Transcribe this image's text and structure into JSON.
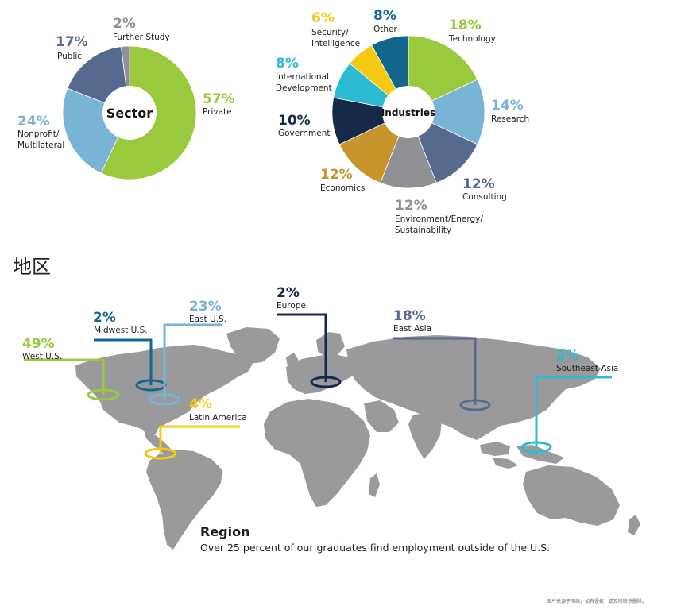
{
  "chart_data": [
    {
      "type": "pie",
      "center_label": "Sector",
      "categories": [
        "Private",
        "Nonprofit/ Multilateral",
        "Public",
        "Further Study"
      ],
      "values": [
        57,
        24,
        17,
        2
      ],
      "value_labels": [
        "57%",
        "24%",
        "17%",
        "2%"
      ],
      "colors": [
        "#99c93c",
        "#79b4d5",
        "#56698f",
        "#8f9093"
      ]
    },
    {
      "type": "pie",
      "center_label": "Industries",
      "categories": [
        "Technology",
        "Research",
        "Consulting",
        "Environment/Energy/ Sustainability",
        "Economics",
        "Government",
        "International Development",
        "Security/ Intelligence",
        "Other"
      ],
      "values": [
        18,
        14,
        12,
        12,
        12,
        10,
        8,
        6,
        8
      ],
      "value_labels": [
        "18%",
        "14%",
        "12%",
        "12%",
        "12%",
        "10%",
        "8%",
        "6%",
        "8%"
      ],
      "colors": [
        "#99c93c",
        "#79b4d5",
        "#56698f",
        "#8f9093",
        "#c8952c",
        "#152a4a",
        "#2bbcd4",
        "#f6c913",
        "#13678f"
      ]
    },
    {
      "type": "map",
      "title": "Region",
      "subtitle": "Over 25 percent of our graduates find employment outside of the U.S.",
      "regions": [
        {
          "name": "West U.S.",
          "value_label": "49%",
          "value": 49,
          "color": "#99c93c"
        },
        {
          "name": "Midwest U.S.",
          "value_label": "2%",
          "value": 2,
          "color": "#13678f"
        },
        {
          "name": "East U.S.",
          "value_label": "23%",
          "value": 23,
          "color": "#79b4d5"
        },
        {
          "name": "Latin America",
          "value_label": "4%",
          "value": 4,
          "color": "#f6c913"
        },
        {
          "name": "Europe",
          "value_label": "2%",
          "value": 2,
          "color": "#152a4a"
        },
        {
          "name": "East Asia",
          "value_label": "18%",
          "value": 18,
          "color": "#56698f"
        },
        {
          "name": "Southeast Asia",
          "value_label": "2%",
          "value": 2,
          "color": "#2bbcd4"
        }
      ]
    }
  ],
  "section_heading": "地区",
  "watermark": "图片来源于网络，如有侵权，请及时联系删除。"
}
